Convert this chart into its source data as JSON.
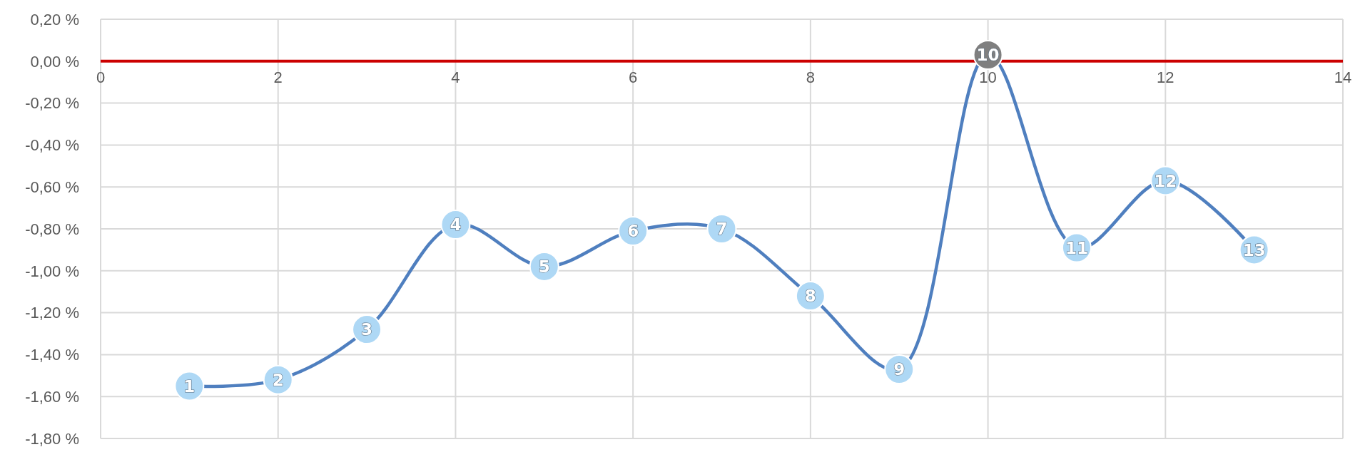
{
  "chart_data": {
    "type": "line",
    "x": [
      1,
      2,
      3,
      4,
      5,
      6,
      7,
      8,
      9,
      10,
      11,
      12,
      13
    ],
    "series": [
      {
        "color": "#4f7fbf",
        "values": [
          -1.55,
          -1.52,
          -1.28,
          -0.78,
          -0.98,
          -0.81,
          -0.8,
          -1.12,
          -1.47,
          0.03,
          -0.89,
          -0.57,
          -0.9
        ],
        "colors": [
          "#aed8f5",
          "#aed8f5",
          "#aed8f5",
          "#aed8f5",
          "#aed8f5",
          "#aed8f5",
          "#aed8f5",
          "#aed8f5",
          "#aed8f5",
          "#7f7f7f",
          "#aed8f5",
          "#aed8f5",
          "#aed8f5"
        ]
      }
    ],
    "annotations": [
      {
        "text": "1",
        "x": 1,
        "y": -1.55
      },
      {
        "text": "2",
        "x": 2,
        "y": -1.52
      },
      {
        "text": "3",
        "x": 3,
        "y": -1.28
      },
      {
        "text": "4",
        "x": 4,
        "y": -0.78
      },
      {
        "text": "5",
        "x": 5,
        "y": -0.98
      },
      {
        "text": "6",
        "x": 6,
        "y": -0.81
      },
      {
        "text": "7",
        "x": 7,
        "y": -0.8
      },
      {
        "text": "8",
        "x": 8,
        "y": -1.12
      },
      {
        "text": "9",
        "x": 9,
        "y": -1.47
      },
      {
        "text": "10",
        "x": 10,
        "y": 0.03
      },
      {
        "text": "11",
        "x": 11,
        "y": -0.89
      },
      {
        "text": "12",
        "x": 12,
        "y": -0.57
      },
      {
        "text": "13",
        "x": 13,
        "y": -0.9
      }
    ],
    "marker": "circle",
    "line_style": "solid",
    "grid": true,
    "xlim": [
      0,
      14
    ],
    "xticks": [
      0,
      2,
      4,
      6,
      8,
      10,
      12,
      14
    ],
    "ylim": [
      -1.8,
      0.2
    ],
    "yticks": [
      {
        "value": 0.2,
        "label": "0,20 %"
      },
      {
        "value": 0,
        "label": "0,00 %"
      },
      {
        "value": -0.2,
        "label": "-0,20 %"
      },
      {
        "value": -0.4,
        "label": "-0,40 %"
      },
      {
        "value": -0.6,
        "label": "-0,60 %"
      },
      {
        "value": -0.8,
        "label": "-0,80 %"
      },
      {
        "value": -1,
        "label": "-1,00 %"
      },
      {
        "value": -1.2,
        "label": "-1,20 %"
      },
      {
        "value": -1.4,
        "label": "-1,40 %"
      },
      {
        "value": -1.6,
        "label": "-1,60 %"
      },
      {
        "value": -1.8,
        "label": "-1,80 %"
      }
    ]
  }
}
